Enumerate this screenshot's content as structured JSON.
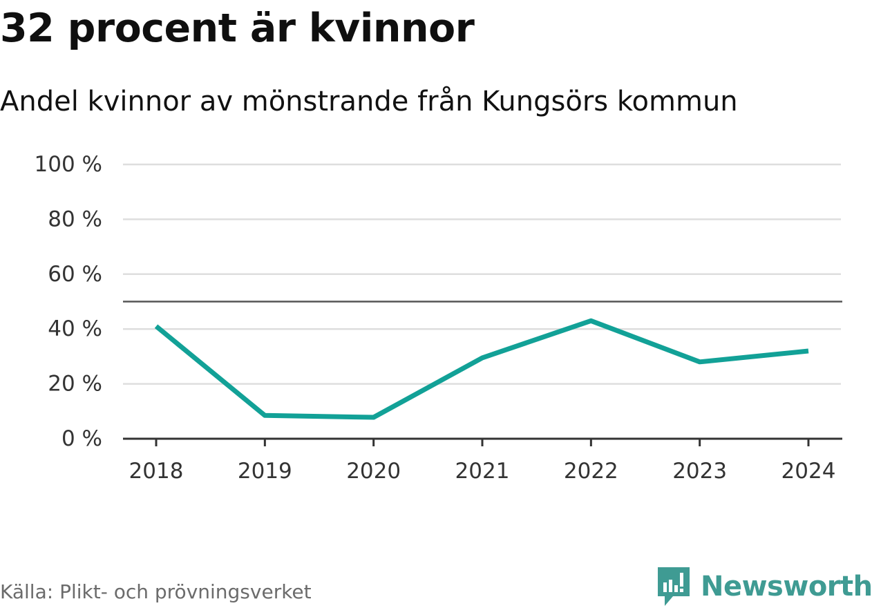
{
  "title": "32 procent är kvinnor",
  "subtitle": "Andel kvinnor av mönstrande från Kungsörs kommun",
  "source": "Källa: Plikt- och prövningsverket",
  "brand": {
    "name": "Newsworthy",
    "logo_icon": "newsworthy-logo-icon",
    "color": "#3f9b93"
  },
  "colors": {
    "line": "#12a197",
    "grid": "#dedede",
    "axis": "#333333",
    "reference": "#555555"
  },
  "chart_data": {
    "type": "line",
    "title": "32 procent är kvinnor",
    "subtitle": "Andel kvinnor av mönstrande från Kungsörs kommun",
    "xlabel": "",
    "ylabel": "",
    "categories": [
      "2018",
      "2019",
      "2020",
      "2021",
      "2022",
      "2023",
      "2024"
    ],
    "series": [
      {
        "name": "Andel kvinnor",
        "values": [
          41,
          8.5,
          7.8,
          29.5,
          43,
          28,
          32
        ]
      }
    ],
    "ylim": [
      0,
      100
    ],
    "yticks": [
      0,
      20,
      40,
      60,
      80,
      100
    ],
    "ytick_labels": [
      "0 %",
      "20 %",
      "40 %",
      "60 %",
      "80 %",
      "100 %"
    ],
    "reference_line": 50,
    "grid": true,
    "legend": "none"
  }
}
